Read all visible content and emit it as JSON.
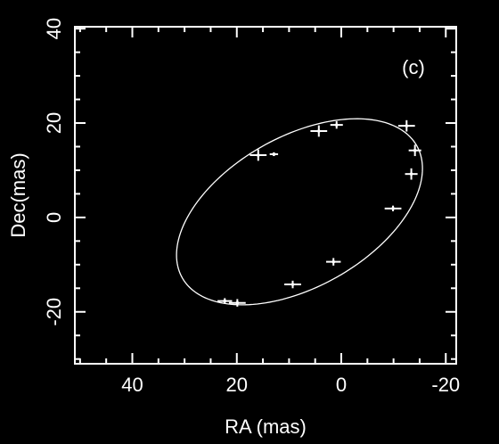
{
  "chart_data": {
    "type": "scatter",
    "xlabel": "RA (mas)",
    "ylabel": "Dec(mas)",
    "annotation": "(c)",
    "xlim": [
      51,
      -22
    ],
    "ylim": [
      -31,
      40.4
    ],
    "xticks": [
      40,
      20,
      0,
      -20
    ],
    "yticks": [
      -20,
      0,
      20,
      40
    ],
    "xminor_ticks": [
      50,
      45,
      35,
      30,
      25,
      15,
      10,
      5,
      -5,
      -10,
      -15
    ],
    "yminor_ticks": [
      -30,
      -25,
      -15,
      -10,
      -5,
      5,
      10,
      15,
      25,
      30,
      35
    ],
    "color": "#ffffff",
    "x": [
      15.9,
      12.9,
      4.3,
      0.9,
      -12.5,
      -14.1,
      -13.4,
      -9.9,
      1.5,
      9.3,
      19.9,
      22.3
    ],
    "y": [
      13.2,
      13.4,
      18.3,
      19.6,
      19.4,
      14.2,
      9.2,
      1.9,
      -9.4,
      -14.2,
      -18.1,
      -17.7
    ],
    "xerr": [
      1.6,
      0.8,
      1.6,
      1.2,
      1.6,
      1.2,
      1.2,
      1.6,
      1.4,
      1.6,
      1.6,
      1.4
    ],
    "yerr": [
      1.2,
      0.4,
      1.2,
      0.8,
      1.2,
      1.2,
      1.2,
      0.6,
      0.8,
      0.8,
      0.8,
      0.6
    ],
    "orbit": {
      "center": [
        8,
        1.2
      ],
      "a": 26.5,
      "b": 15.5,
      "angle": -34.5
    }
  }
}
